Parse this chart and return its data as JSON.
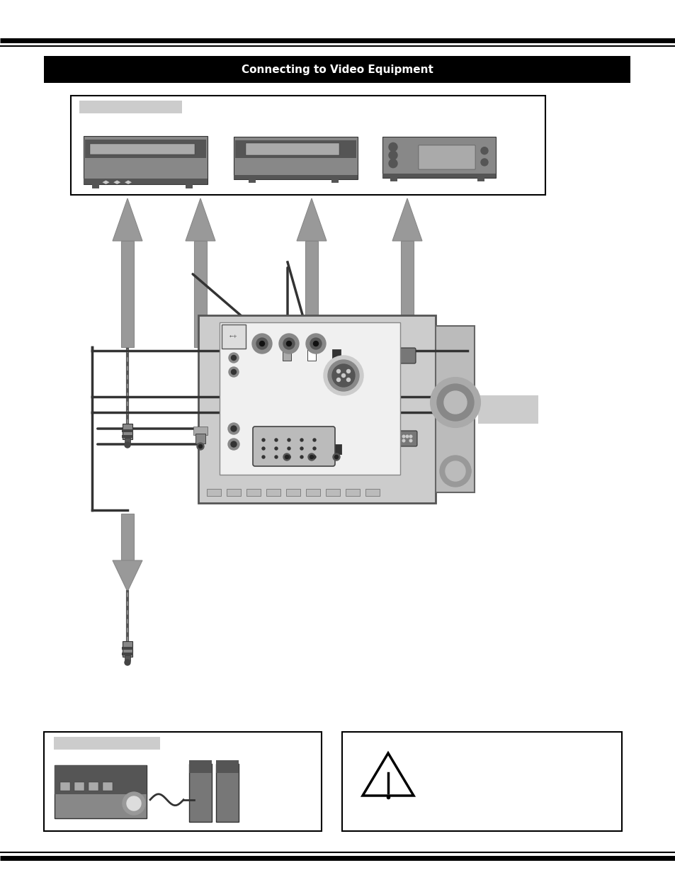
{
  "bg": "#ffffff",
  "title_text": "Connecting to Video Equipment",
  "title_bar_color": "#000000",
  "title_text_color": "#ffffff",
  "gray_label": "#cccccc",
  "arrow_fill": "#999999",
  "arrow_edge": "#888888",
  "line_col": "#444444",
  "proj_body": "#cccccc",
  "proj_panel": "#e8e8e8",
  "proj_dark": "#888888",
  "device_fill": "#777777",
  "device_dark": "#555555"
}
